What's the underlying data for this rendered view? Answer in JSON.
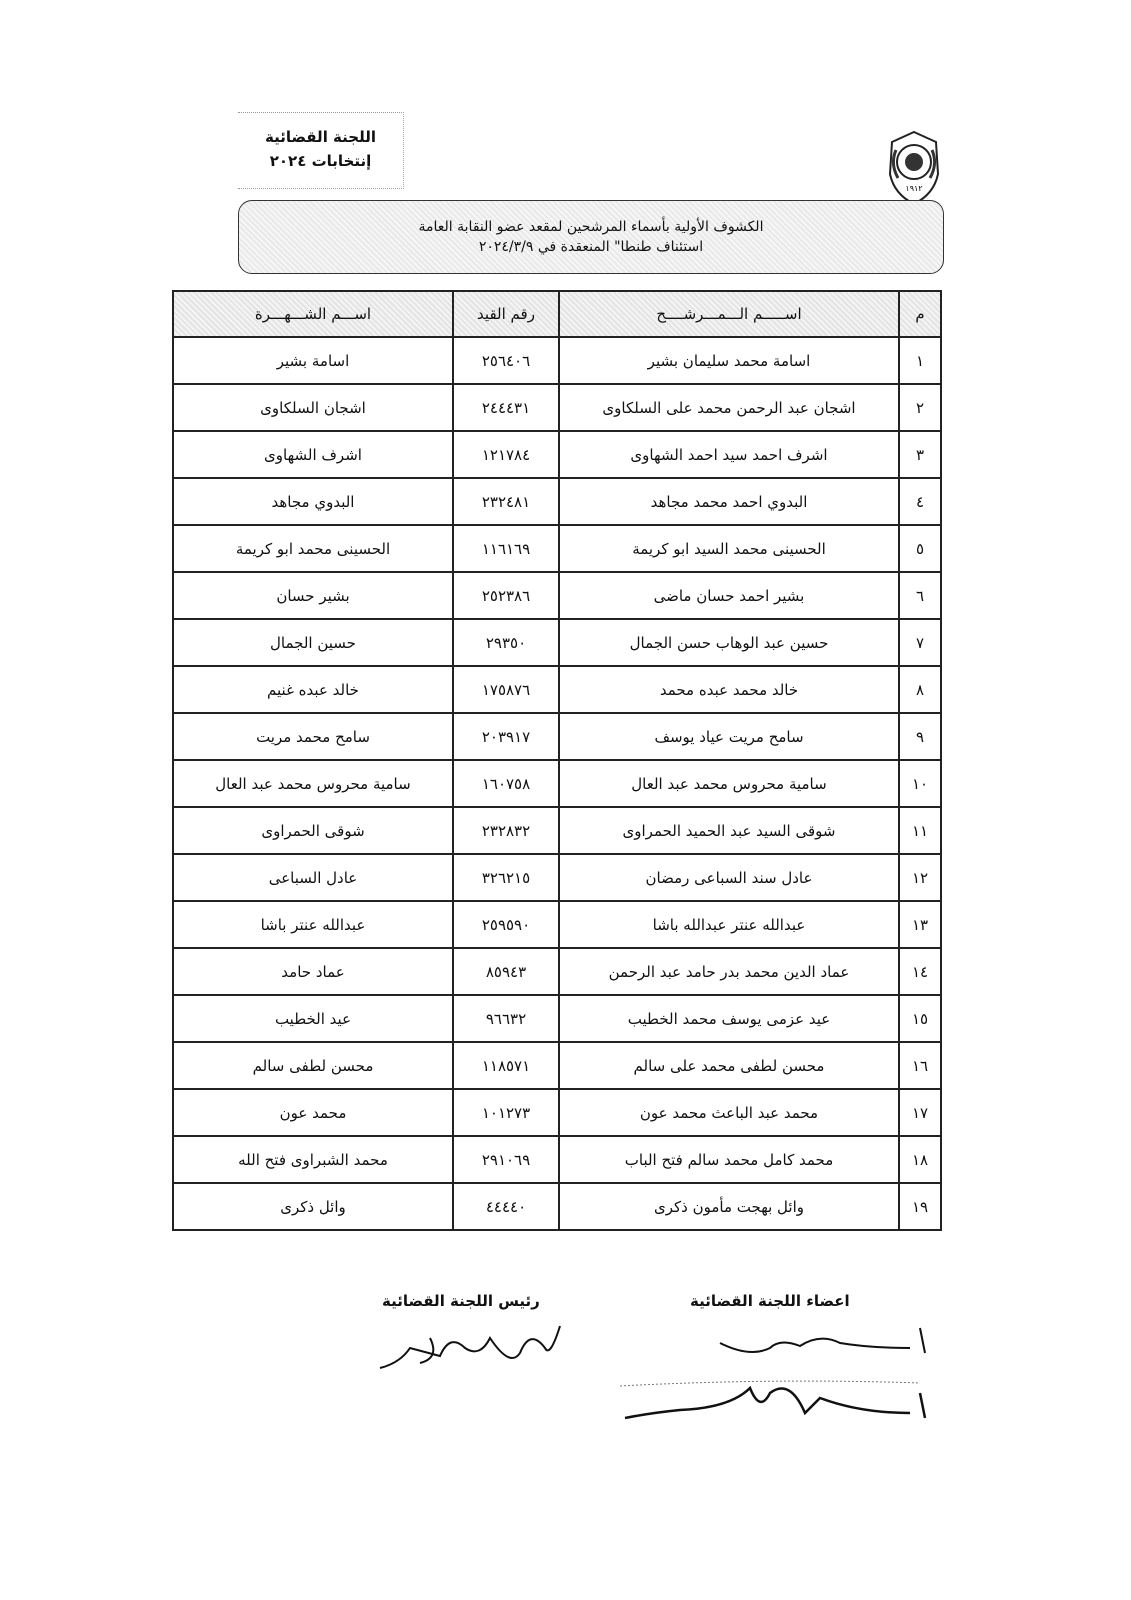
{
  "header": {
    "committee": "اللجنة القضائية",
    "elections": "إنتخابات ٢٠٢٤",
    "logo_year": "١٩١٢"
  },
  "title": {
    "line1": "الكشوف الأولية بأسماء المرشحين لمقعد عضو النقابة العامة",
    "line2": "استئناف طنطا\" المنعقدة في ٢٠٢٤/٣/٩"
  },
  "table": {
    "columns": [
      "م",
      "اســـــم الـــمـــرشــــح",
      "رقم القيد",
      "اســـم الشـــهـــرة"
    ],
    "rows": [
      {
        "no": "١",
        "name": "اسامة محمد سليمان بشير",
        "reg": "٢٥٦٤٠٦",
        "nick": "اسامة بشير"
      },
      {
        "no": "٢",
        "name": "اشجان عبد الرحمن محمد على السلكاوى",
        "reg": "٢٤٤٤٣١",
        "nick": "اشجان السلكاوى"
      },
      {
        "no": "٣",
        "name": "اشرف احمد سيد احمد الشهاوى",
        "reg": "١٢١٧٨٤",
        "nick": "اشرف الشهاوى"
      },
      {
        "no": "٤",
        "name": "البدوي احمد محمد مجاهد",
        "reg": "٢٣٢٤٨١",
        "nick": "البدوي مجاهد"
      },
      {
        "no": "٥",
        "name": "الحسينى محمد السيد ابو كريمة",
        "reg": "١١٦١٦٩",
        "nick": "الحسينى محمد ابو كريمة"
      },
      {
        "no": "٦",
        "name": "بشير احمد حسان ماضى",
        "reg": "٢٥٢٣٨٦",
        "nick": "بشير حسان"
      },
      {
        "no": "٧",
        "name": "حسين عبد الوهاب حسن الجمال",
        "reg": "٢٩٣٥٠",
        "nick": "حسين الجمال"
      },
      {
        "no": "٨",
        "name": "خالد محمد عبده محمد",
        "reg": "١٧٥٨٧٦",
        "nick": "خالد عبده غنيم"
      },
      {
        "no": "٩",
        "name": "سامح مريت عياد يوسف",
        "reg": "٢٠٣٩١٧",
        "nick": "سامح محمد مريت"
      },
      {
        "no": "١٠",
        "name": "سامية محروس محمد عبد العال",
        "reg": "١٦٠٧٥٨",
        "nick": "سامية محروس محمد عبد العال"
      },
      {
        "no": "١١",
        "name": "شوقى السيد عبد الحميد الحمراوى",
        "reg": "٢٣٢٨٣٢",
        "nick": "شوقى الحمراوى"
      },
      {
        "no": "١٢",
        "name": "عادل سند السباعى رمضان",
        "reg": "٣٢٦٢١٥",
        "nick": "عادل السباعى"
      },
      {
        "no": "١٣",
        "name": "عبدالله عنتر عبدالله باشا",
        "reg": "٢٥٩٥٩٠",
        "nick": "عبدالله عنتر باشا"
      },
      {
        "no": "١٤",
        "name": "عماد الدين محمد بدر حامد عبد الرحمن",
        "reg": "٨٥٩٤٣",
        "nick": "عماد حامد"
      },
      {
        "no": "١٥",
        "name": "عيد عزمى يوسف محمد الخطيب",
        "reg": "٩٦٦٣٢",
        "nick": "عيد الخطيب"
      },
      {
        "no": "١٦",
        "name": "محسن لطفى محمد على سالم",
        "reg": "١١٨٥٧١",
        "nick": "محسن لطفى سالم"
      },
      {
        "no": "١٧",
        "name": "محمد عبد الباعث محمد عون",
        "reg": "١٠١٢٧٣",
        "nick": "محمد عون"
      },
      {
        "no": "١٨",
        "name": "محمد كامل محمد سالم فتح الباب",
        "reg": "٢٩١٠٦٩",
        "nick": "محمد الشبراوى فتح الله"
      },
      {
        "no": "١٩",
        "name": "وائل بهجت مأمون ذكرى",
        "reg": "٤٤٤٤٠",
        "nick": "وائل ذكرى"
      }
    ]
  },
  "signatures": {
    "chair": "رئيس اللجنة القضائية",
    "members": "اعضاء اللجنة القضائية"
  }
}
